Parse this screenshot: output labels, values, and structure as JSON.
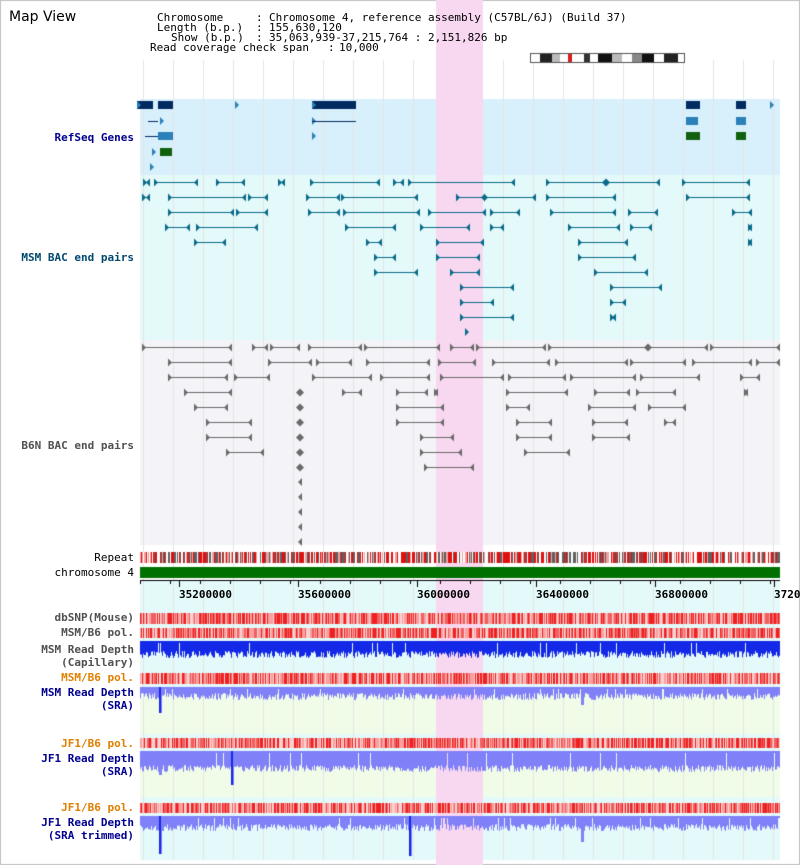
{
  "title": "Map View",
  "header": {
    "chromosome_label": "Chromosome",
    "chromosome_value": "Chromosome 4, reference assembly (C57BL/6J) (Build 37)",
    "length_label": "Length (b.p.)",
    "length_value": "155,630,120",
    "show_label": "Show (b.p.)",
    "show_value": "35,063,939-37,215,764 : 2,151,826 bp",
    "coverage_label": "Read coverage check span",
    "coverage_value": "10,000"
  },
  "tracks": {
    "refseq": "RefSeq Genes",
    "msm_bac": "MSM BAC end pairs",
    "b6n_bac": "B6N BAC end pairs",
    "repeat": "Repeat",
    "chromosome": "chromosome 4",
    "dbsnp": "dbSNP(Mouse)",
    "msm_b6_pol_1": "MSM/B6 pol.",
    "msm_depth_cap_1": "MSM Read Depth",
    "msm_depth_cap_2": "(Capillary)",
    "msm_b6_pol_2": "MSM/B6 pol.",
    "msm_depth_sra_1": "MSM Read Depth",
    "msm_depth_sra_2": "(SRA)",
    "jf1_b6_pol_1": "JF1/B6 pol.",
    "jf1_depth_sra_1": "JF1 Read Depth",
    "jf1_depth_sra_2": "(SRA)",
    "jf1_b6_pol_2": "JF1/B6 pol.",
    "jf1_trim_1": "JF1 Read Depth",
    "jf1_trim_2": "(SRA trimmed)"
  },
  "axis_ticks": [
    "35200000",
    "35600000",
    "36000000",
    "36400000",
    "36800000",
    "3720"
  ],
  "colors": {
    "highlight": "#f8d8f0",
    "refseq_bg": "#d8f0fc",
    "msm_bg": "#e4fafa",
    "b6n_bg": "#f4f4f8",
    "chromosome_bar": "#007000",
    "label_blue": "#000090",
    "label_orange": "#e08000",
    "label_teal": "#004870",
    "depth_blue": "#1428e8",
    "depth_light": "#8080f8"
  }
}
